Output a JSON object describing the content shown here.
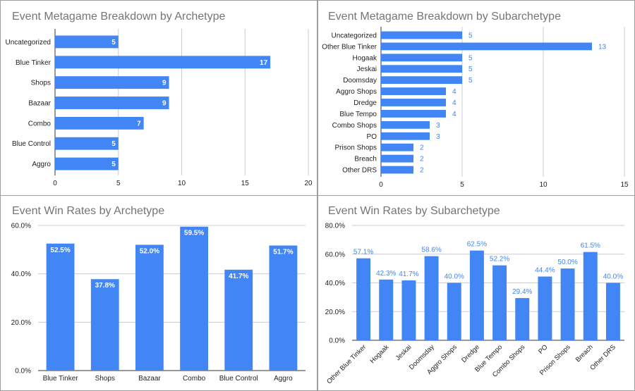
{
  "chart_data": [
    {
      "type": "bar",
      "orientation": "horizontal",
      "title": "Event Metagame Breakdown by Archetype",
      "categories": [
        "Uncategorized",
        "Blue Tinker",
        "Shops",
        "Bazaar",
        "Combo",
        "Blue Control",
        "Aggro"
      ],
      "values": [
        5,
        17,
        9,
        9,
        7,
        5,
        5
      ],
      "value_labels": [
        "5",
        "17",
        "9",
        "9",
        "7",
        "5",
        "5"
      ],
      "xlim": [
        0,
        20
      ],
      "ticks": [
        0,
        5,
        10,
        15,
        20
      ],
      "tick_labels": [
        "0",
        "5",
        "10",
        "15",
        "20"
      ],
      "grid": true,
      "color": "#4285f4"
    },
    {
      "type": "bar",
      "orientation": "horizontal",
      "title": "Event Metagame Breakdown by Subarchetype",
      "categories": [
        "Uncategorized",
        "Other Blue Tinker",
        "Hogaak",
        "Jeskai",
        "Doomsday",
        "Aggro Shops",
        "Dredge",
        "Blue Tempo",
        "Combo Shops",
        "PO",
        "Prison Shops",
        "Breach",
        "Other DRS"
      ],
      "values": [
        5,
        13,
        5,
        5,
        5,
        4,
        4,
        4,
        3,
        3,
        2,
        2,
        2
      ],
      "value_labels": [
        "5",
        "13",
        "5",
        "5",
        "5",
        "4",
        "4",
        "4",
        "3",
        "3",
        "2",
        "2",
        "2"
      ],
      "xlim": [
        0,
        15
      ],
      "ticks": [
        0,
        5,
        10,
        15
      ],
      "tick_labels": [
        "0",
        "5",
        "10",
        "15"
      ],
      "grid": true,
      "color": "#4285f4"
    },
    {
      "type": "bar",
      "orientation": "vertical",
      "title": "Event Win Rates by Archetype",
      "categories": [
        "Blue Tinker",
        "Shops",
        "Bazaar",
        "Combo",
        "Blue Control",
        "Aggro"
      ],
      "values": [
        52.5,
        37.8,
        52.0,
        59.5,
        41.7,
        51.7
      ],
      "value_labels": [
        "52.5%",
        "37.8%",
        "52.0%",
        "59.5%",
        "41.7%",
        "51.7%"
      ],
      "ylim": [
        0,
        60
      ],
      "ticks": [
        0,
        20,
        40,
        60
      ],
      "tick_labels": [
        "0.0%",
        "20.0%",
        "40.0%",
        "60.0%"
      ],
      "grid": true,
      "color": "#4285f4"
    },
    {
      "type": "bar",
      "orientation": "vertical",
      "title": "Event Win Rates by Subarchetype",
      "categories": [
        "Other Blue Tinker",
        "Hogaak",
        "Jeskai",
        "Doomsday",
        "Aggro Shops",
        "Dredge",
        "Blue Tempo",
        "Combo Shops",
        "PO",
        "Prison Shops",
        "Breach",
        "Other DRS"
      ],
      "values": [
        57.1,
        42.3,
        41.7,
        58.6,
        40.0,
        62.5,
        52.2,
        29.4,
        44.4,
        50.0,
        61.5,
        40.0
      ],
      "value_labels": [
        "57.1%",
        "42.3%",
        "41.7%",
        "58.6%",
        "40.0%",
        "62.5%",
        "52.2%",
        "29.4%",
        "44.4%",
        "50.0%",
        "61.5%",
        "40.0%"
      ],
      "ylim": [
        0,
        80
      ],
      "ticks": [
        0,
        20,
        40,
        60,
        80
      ],
      "tick_labels": [
        "0.0%",
        "20.0%",
        "40.0%",
        "60.0%",
        "80.0%"
      ],
      "grid": true,
      "rotated_category_labels": true,
      "color": "#4285f4"
    }
  ]
}
